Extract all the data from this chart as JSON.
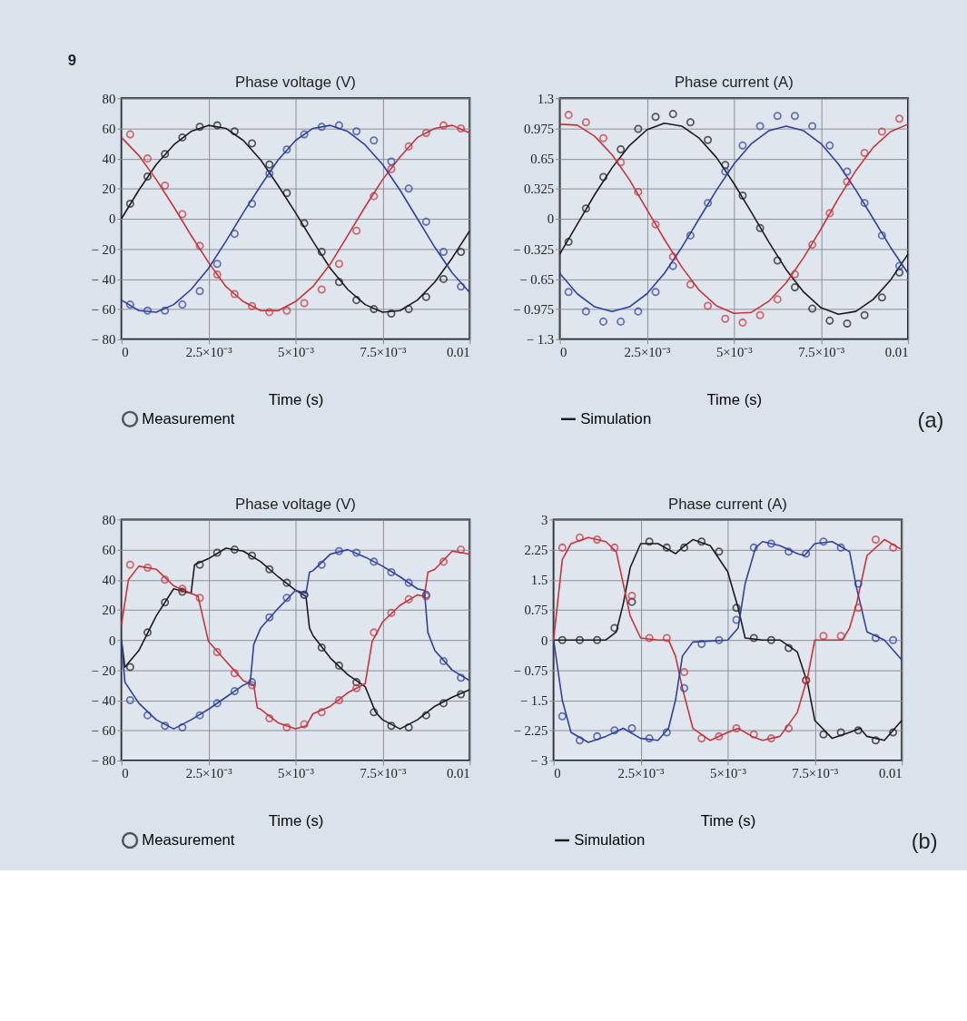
{
  "chart_data": [
    {
      "type": "line",
      "title": "Phase voltage (V)",
      "xlabel": "Time (s)",
      "xlim": [
        0,
        0.01
      ],
      "ylim": [
        -80,
        80
      ],
      "grid": true,
      "legend": "bottom",
      "annotations": [
        "9"
      ],
      "xticks": [
        0,
        {
          "value": 0.0025,
          "label": "2.5×10⁻³"
        },
        {
          "value": 0.005,
          "label": "5×10⁻³"
        },
        {
          "value": 0.0075,
          "label": "7.5×10⁻³"
        },
        0.01
      ],
      "yticks": [
        {
          "value": -80,
          "label": "− 80"
        },
        {
          "value": -60,
          "label": "− 60"
        },
        {
          "value": -40,
          "label": "− 40"
        },
        {
          "value": -20,
          "label": "− 20"
        },
        0,
        20,
        40,
        60,
        80
      ],
      "series": [
        {
          "type": "line",
          "color": "#1a1a1a",
          "x": [
            0,
            0.0005,
            0.001,
            0.0015,
            0.002,
            0.0025,
            0.003,
            0.0035,
            0.004,
            0.0045,
            0.005,
            0.0055,
            0.006,
            0.0065,
            0.007,
            0.0075,
            0.008,
            0.0085,
            0.009,
            0.0095,
            0.01
          ],
          "values": [
            0,
            19,
            36,
            49,
            58,
            62,
            60,
            52,
            39,
            22,
            4,
            -15,
            -33,
            -47,
            -57,
            -62,
            -61,
            -54,
            -42,
            -26,
            -8
          ]
        },
        {
          "type": "line",
          "color": "#c8323a",
          "x": [
            0,
            0.0005,
            0.001,
            0.0015,
            0.002,
            0.0025,
            0.003,
            0.0035,
            0.004,
            0.0045,
            0.005,
            0.0055,
            0.006,
            0.0065,
            0.007,
            0.0075,
            0.008,
            0.0085,
            0.009,
            0.0095,
            0.01
          ],
          "values": [
            54,
            42,
            26,
            8,
            -11,
            -29,
            -45,
            -55,
            -61,
            -61,
            -55,
            -45,
            -30,
            -11,
            8,
            26,
            41,
            54,
            60,
            62,
            57
          ]
        },
        {
          "type": "line",
          "color": "#2f3f9e",
          "x": [
            0,
            0.0005,
            0.001,
            0.0015,
            0.002,
            0.0025,
            0.003,
            0.0035,
            0.004,
            0.0045,
            0.005,
            0.0055,
            0.006,
            0.0065,
            0.007,
            0.0075,
            0.008,
            0.0085,
            0.009,
            0.0095,
            0.01
          ],
          "values": [
            -54,
            -61,
            -62,
            -57,
            -47,
            -33,
            -15,
            4,
            22,
            39,
            52,
            60,
            62,
            58,
            49,
            36,
            19,
            0,
            -19,
            -36,
            -49
          ]
        },
        {
          "type": "scatter",
          "name": "Measurement",
          "color": "#1a1a1a",
          "marker": "circle",
          "x": [
            0.00025,
            0.00075,
            0.00125,
            0.00175,
            0.00225,
            0.00275,
            0.00325,
            0.00375,
            0.00425,
            0.00475,
            0.00525,
            0.00575,
            0.00625,
            0.00675,
            0.00725,
            0.00775,
            0.00825,
            0.00875,
            0.00925,
            0.00975
          ],
          "values": [
            10,
            28,
            43,
            54,
            61,
            62,
            58,
            50,
            36,
            17,
            -3,
            -22,
            -42,
            -54,
            -60,
            -63,
            -60,
            -52,
            -40,
            -22
          ]
        },
        {
          "type": "scatter",
          "color": "#c8323a",
          "marker": "circle",
          "x": [
            0.00025,
            0.00075,
            0.00125,
            0.00175,
            0.00225,
            0.00275,
            0.00325,
            0.00375,
            0.00425,
            0.00475,
            0.00525,
            0.00575,
            0.00625,
            0.00675,
            0.00725,
            0.00775,
            0.00825,
            0.00875,
            0.00925,
            0.00975
          ],
          "values": [
            56,
            40,
            22,
            3,
            -18,
            -37,
            -50,
            -58,
            -62,
            -61,
            -56,
            -47,
            -30,
            -8,
            15,
            33,
            48,
            57,
            62,
            60
          ]
        },
        {
          "type": "scatter",
          "color": "#2f3f9e",
          "marker": "circle",
          "x": [
            0.00025,
            0.00075,
            0.00125,
            0.00175,
            0.00225,
            0.00275,
            0.00325,
            0.00375,
            0.00425,
            0.00475,
            0.00525,
            0.00575,
            0.00625,
            0.00675,
            0.00725,
            0.00775,
            0.00825,
            0.00875,
            0.00925,
            0.00975
          ],
          "values": [
            -57,
            -61,
            -61,
            -57,
            -48,
            -30,
            -10,
            10,
            30,
            46,
            56,
            61,
            62,
            58,
            52,
            38,
            20,
            -2,
            -22,
            -45
          ]
        }
      ]
    },
    {
      "type": "line",
      "title": "Phase current (A)",
      "xlabel": "Time (s)",
      "xlim": [
        0,
        0.01
      ],
      "ylim": [
        -1.3,
        1.3
      ],
      "grid": true,
      "legend": "bottom",
      "annotations": [
        "(a)"
      ],
      "xticks": [
        0,
        {
          "value": 0.0025,
          "label": "2.5×10⁻³"
        },
        {
          "value": 0.005,
          "label": "5×10⁻³"
        },
        {
          "value": 0.0075,
          "label": "7.5×10⁻³"
        },
        0.01
      ],
      "yticks": [
        {
          "value": -1.3,
          "label": "− 1.3"
        },
        {
          "value": -0.975,
          "label": "− 0.975"
        },
        {
          "value": -0.65,
          "label": "− 0.65"
        },
        {
          "value": -0.325,
          "label": "− 0.325"
        },
        0,
        0.325,
        0.65,
        0.975,
        1.3
      ],
      "series": [
        {
          "type": "line",
          "name": "Simulation",
          "color": "#1a1a1a",
          "x": [
            0,
            0.0005,
            0.001,
            0.0015,
            0.002,
            0.0025,
            0.003,
            0.0035,
            0.004,
            0.0045,
            0.005,
            0.0055,
            0.006,
            0.0065,
            0.007,
            0.0075,
            0.008,
            0.0085,
            0.009,
            0.0095,
            0.01
          ],
          "values": [
            -0.38,
            -0.06,
            0.26,
            0.55,
            0.79,
            0.96,
            1.03,
            1.0,
            0.87,
            0.66,
            0.38,
            0.07,
            -0.25,
            -0.55,
            -0.79,
            -0.96,
            -1.03,
            -1.0,
            -0.87,
            -0.66,
            -0.38
          ]
        },
        {
          "type": "line",
          "color": "#c8323a",
          "x": [
            0,
            0.0005,
            0.001,
            0.0015,
            0.002,
            0.0025,
            0.003,
            0.0035,
            0.004,
            0.0045,
            0.005,
            0.0055,
            0.006,
            0.0065,
            0.007,
            0.0075,
            0.008,
            0.0085,
            0.009,
            0.0095,
            0.01
          ],
          "values": [
            1.02,
            1.01,
            0.89,
            0.69,
            0.42,
            0.1,
            -0.22,
            -0.52,
            -0.77,
            -0.94,
            -1.02,
            -1.01,
            -0.89,
            -0.69,
            -0.42,
            -0.11,
            0.22,
            0.52,
            0.77,
            0.94,
            1.02
          ]
        },
        {
          "type": "line",
          "color": "#2f3f9e",
          "x": [
            0,
            0.0005,
            0.001,
            0.0015,
            0.002,
            0.0025,
            0.003,
            0.0035,
            0.004,
            0.0045,
            0.005,
            0.0055,
            0.006,
            0.0065,
            0.007,
            0.0075,
            0.008,
            0.0085,
            0.009,
            0.0095,
            0.01
          ],
          "values": [
            -0.59,
            -0.81,
            -0.95,
            -1.0,
            -0.95,
            -0.81,
            -0.59,
            -0.31,
            0,
            0.31,
            0.59,
            0.81,
            0.95,
            1.0,
            0.95,
            0.81,
            0.59,
            0.31,
            0,
            -0.31,
            -0.59
          ]
        },
        {
          "type": "scatter",
          "color": "#1a1a1a",
          "marker": "circle",
          "x": [
            0.00025,
            0.00075,
            0.00125,
            0.00175,
            0.00225,
            0.00275,
            0.00325,
            0.00375,
            0.00425,
            0.00475,
            0.00525,
            0.00575,
            0.00625,
            0.00675,
            0.00725,
            0.00775,
            0.00825,
            0.00875,
            0.00925,
            0.00975
          ],
          "values": [
            -0.25,
            0.11,
            0.45,
            0.75,
            0.97,
            1.1,
            1.13,
            1.04,
            0.85,
            0.58,
            0.25,
            -0.1,
            -0.45,
            -0.74,
            -0.97,
            -1.1,
            -1.13,
            -1.04,
            -0.85,
            -0.58
          ]
        },
        {
          "type": "scatter",
          "color": "#c8323a",
          "marker": "circle",
          "x": [
            0.00025,
            0.00075,
            0.00125,
            0.00175,
            0.00225,
            0.00275,
            0.00325,
            0.00375,
            0.00425,
            0.00475,
            0.00525,
            0.00575,
            0.00625,
            0.00675,
            0.00725,
            0.00775,
            0.00825,
            0.00875,
            0.00925,
            0.00975
          ],
          "values": [
            1.12,
            1.04,
            0.87,
            0.61,
            0.29,
            -0.06,
            -0.41,
            -0.71,
            -0.94,
            -1.08,
            -1.12,
            -1.04,
            -0.87,
            -0.6,
            -0.28,
            0.06,
            0.4,
            0.71,
            0.94,
            1.08
          ]
        },
        {
          "type": "scatter",
          "color": "#2f3f9e",
          "marker": "circle",
          "x": [
            0.00025,
            0.00075,
            0.00125,
            0.00175,
            0.00225,
            0.00275,
            0.00325,
            0.00375,
            0.00425,
            0.00475,
            0.00525,
            0.00575,
            0.00625,
            0.00675,
            0.00725,
            0.00775,
            0.00825,
            0.00875,
            0.00925,
            0.00975
          ],
          "values": [
            -0.79,
            -1.0,
            -1.11,
            -1.11,
            -1.0,
            -0.79,
            -0.51,
            -0.18,
            0.17,
            0.51,
            0.79,
            1.0,
            1.11,
            1.11,
            1.0,
            0.79,
            0.51,
            0.17,
            -0.18,
            -0.51
          ]
        }
      ]
    },
    {
      "type": "line",
      "title": "Phase voltage (V)",
      "xlabel": "Time (s)",
      "xlim": [
        0,
        0.01
      ],
      "ylim": [
        -80,
        80
      ],
      "grid": true,
      "legend": "bottom",
      "xticks": [
        0,
        {
          "value": 0.0025,
          "label": "2.5×10⁻³"
        },
        {
          "value": 0.005,
          "label": "5×10⁻³"
        },
        {
          "value": 0.0075,
          "label": "7.5×10⁻³"
        },
        0.01
      ],
      "yticks": [
        {
          "value": -80,
          "label": "− 80"
        },
        {
          "value": -60,
          "label": "− 60"
        },
        {
          "value": -40,
          "label": "− 40"
        },
        {
          "value": -20,
          "label": "− 20"
        },
        0,
        20,
        40,
        60,
        80
      ],
      "series": [
        {
          "type": "line",
          "color": "#1a1a1a",
          "x": [
            0,
            0.0001,
            0.0005,
            0.001,
            0.0015,
            0.002,
            0.0021,
            0.0025,
            0.003,
            0.0035,
            0.004,
            0.0045,
            0.005,
            0.0053,
            0.0054,
            0.0055,
            0.006,
            0.0065,
            0.007,
            0.0073,
            0.0075,
            0.008,
            0.0085,
            0.009,
            0.0095,
            0.01
          ],
          "values": [
            0,
            -18,
            -7,
            16,
            34,
            31,
            50,
            54,
            61,
            59,
            52,
            42,
            33,
            29,
            8,
            3,
            -12,
            -23,
            -31,
            -48,
            -53,
            -59,
            -53,
            -44,
            -38,
            -33
          ]
        },
        {
          "type": "line",
          "color": "#c8323a",
          "x": [
            0,
            0.0002,
            0.0005,
            0.001,
            0.0015,
            0.002,
            0.0022,
            0.0025,
            0.003,
            0.0035,
            0.0038,
            0.0039,
            0.004,
            0.0045,
            0.005,
            0.0053,
            0.0055,
            0.006,
            0.0065,
            0.007,
            0.0071,
            0.0072,
            0.0075,
            0.008,
            0.0085,
            0.0087,
            0.0088,
            0.009,
            0.0095,
            0.01
          ],
          "values": [
            10,
            40,
            49,
            47,
            36,
            31,
            29,
            -1,
            -14,
            -27,
            -30,
            -45,
            -46,
            -55,
            -59,
            -57,
            -49,
            -44,
            -35,
            -29,
            -15,
            -1,
            12,
            23,
            30,
            29,
            45,
            47,
            59,
            57
          ]
        },
        {
          "type": "line",
          "color": "#2f3f9e",
          "x": [
            0,
            0.0001,
            0.0005,
            0.001,
            0.0015,
            0.002,
            0.0025,
            0.003,
            0.0035,
            0.0037,
            0.0038,
            0.004,
            0.0045,
            0.005,
            0.0053,
            0.0054,
            0.0055,
            0.006,
            0.0065,
            0.007,
            0.0075,
            0.008,
            0.0085,
            0.0087,
            0.0088,
            0.009,
            0.0095,
            0.01
          ],
          "values": [
            0,
            -28,
            -42,
            -53,
            -59,
            -53,
            -46,
            -38,
            -30,
            -28,
            -3,
            8,
            21,
            33,
            31,
            45,
            46,
            57,
            60,
            55,
            49,
            42,
            34,
            33,
            5,
            -7,
            -20,
            -27
          ]
        },
        {
          "type": "scatter",
          "name": "Measurement",
          "color": "#1a1a1a",
          "marker": "circle",
          "x": [
            0.00025,
            0.00075,
            0.00125,
            0.00175,
            0.00225,
            0.00275,
            0.00325,
            0.00375,
            0.00425,
            0.00475,
            0.00525,
            0.00575,
            0.00625,
            0.00675,
            0.00725,
            0.00775,
            0.00825,
            0.00875,
            0.00925,
            0.00975
          ],
          "values": [
            -18,
            5,
            25,
            32,
            50,
            58,
            60,
            56,
            47,
            38,
            30,
            -5,
            -17,
            -28,
            -48,
            -57,
            -58,
            -50,
            -42,
            -36
          ]
        },
        {
          "type": "scatter",
          "color": "#c8323a",
          "marker": "circle",
          "x": [
            0.00025,
            0.00075,
            0.00125,
            0.00175,
            0.00225,
            0.00275,
            0.00325,
            0.00375,
            0.00425,
            0.00475,
            0.00525,
            0.00575,
            0.00625,
            0.00675,
            0.00725,
            0.00775,
            0.00825,
            0.00875,
            0.00925,
            0.00975
          ],
          "values": [
            50,
            48,
            40,
            34,
            28,
            -8,
            -22,
            -30,
            -52,
            -58,
            -56,
            -48,
            -40,
            -32,
            5,
            18,
            27,
            29,
            52,
            60
          ]
        },
        {
          "type": "scatter",
          "color": "#2f3f9e",
          "marker": "circle",
          "x": [
            0.00025,
            0.00075,
            0.00125,
            0.00175,
            0.00225,
            0.00275,
            0.00325,
            0.00375,
            0.00425,
            0.00475,
            0.00525,
            0.00575,
            0.00625,
            0.00675,
            0.00725,
            0.00775,
            0.00825,
            0.00875,
            0.00925,
            0.00975
          ],
          "values": [
            -40,
            -50,
            -57,
            -58,
            -50,
            -42,
            -34,
            -28,
            15,
            28,
            30,
            50,
            59,
            58,
            52,
            45,
            38,
            30,
            -14,
            -25
          ]
        }
      ]
    },
    {
      "type": "line",
      "title": "Phase current (A)",
      "xlabel": "Time (s)",
      "xlim": [
        0,
        0.01
      ],
      "ylim": [
        -3,
        3
      ],
      "grid": true,
      "legend": "bottom",
      "annotations": [
        "(b)"
      ],
      "xticks": [
        0,
        {
          "value": 0.0025,
          "label": "2.5×10⁻³"
        },
        {
          "value": 0.005,
          "label": "5×10⁻³"
        },
        {
          "value": 0.0075,
          "label": "7.5×10⁻³"
        },
        0.01
      ],
      "yticks": [
        {
          "value": -3,
          "label": "− 3"
        },
        {
          "value": -2.25,
          "label": "− 2.25"
        },
        {
          "value": -1.5,
          "label": "− 1.5"
        },
        {
          "value": -0.75,
          "label": "− 0.75"
        },
        0,
        0.75,
        1.5,
        2.25,
        3
      ],
      "series": [
        {
          "type": "line",
          "name": "Simulation",
          "color": "#1a1a1a",
          "x": [
            0,
            0.0005,
            0.0015,
            0.0018,
            0.002,
            0.0022,
            0.0025,
            0.003,
            0.0035,
            0.0037,
            0.004,
            0.0045,
            0.005,
            0.0053,
            0.0055,
            0.006,
            0.0065,
            0.007,
            0.0073,
            0.0075,
            0.008,
            0.0085,
            0.0088,
            0.009,
            0.0095,
            0.01
          ],
          "values": [
            0,
            0,
            0,
            0.2,
            0.9,
            1.8,
            2.4,
            2.4,
            2.15,
            2.3,
            2.5,
            2.35,
            1.7,
            0.8,
            0.05,
            0,
            0,
            -0.3,
            -1.1,
            -2.0,
            -2.45,
            -2.3,
            -2.2,
            -2.4,
            -2.5,
            -2.0
          ]
        },
        {
          "type": "line",
          "color": "#c8323a",
          "x": [
            0,
            0.00025,
            0.0005,
            0.001,
            0.0015,
            0.0018,
            0.002,
            0.0022,
            0.0025,
            0.003,
            0.0033,
            0.0035,
            0.0037,
            0.004,
            0.0045,
            0.005,
            0.0053,
            0.0057,
            0.006,
            0.0065,
            0.007,
            0.0073,
            0.0075,
            0.008,
            0.0083,
            0.0085,
            0.0087,
            0.009,
            0.0095,
            0.01
          ],
          "values": [
            0,
            2.0,
            2.4,
            2.55,
            2.45,
            2.2,
            1.4,
            0.6,
            0.05,
            0,
            0,
            -0.4,
            -1.2,
            -2.2,
            -2.5,
            -2.3,
            -2.2,
            -2.4,
            -2.5,
            -2.4,
            -1.8,
            -0.9,
            0,
            0,
            0,
            0.3,
            0.9,
            2.1,
            2.5,
            2.25
          ]
        },
        {
          "type": "line",
          "color": "#2f3f9e",
          "x": [
            0,
            0.00025,
            0.0005,
            0.001,
            0.0015,
            0.002,
            0.0025,
            0.003,
            0.0033,
            0.0035,
            0.0037,
            0.004,
            0.005,
            0.0053,
            0.0055,
            0.0058,
            0.006,
            0.0065,
            0.007,
            0.0072,
            0.0075,
            0.008,
            0.0085,
            0.0087,
            0.009,
            0.0095,
            0.01
          ],
          "values": [
            0,
            -1.5,
            -2.3,
            -2.55,
            -2.4,
            -2.2,
            -2.45,
            -2.5,
            -2.2,
            -1.5,
            -0.4,
            -0.05,
            0,
            0.3,
            1.4,
            2.3,
            2.45,
            2.35,
            2.15,
            2.1,
            2.4,
            2.45,
            2.2,
            1.3,
            0.2,
            0,
            -0.5
          ]
        },
        {
          "type": "scatter",
          "color": "#1a1a1a",
          "marker": "circle",
          "x": [
            0.00025,
            0.00075,
            0.00125,
            0.00175,
            0.00225,
            0.00275,
            0.00325,
            0.00375,
            0.00425,
            0.00475,
            0.00525,
            0.00575,
            0.00625,
            0.00675,
            0.00725,
            0.00775,
            0.00825,
            0.00875,
            0.00925,
            0.00975
          ],
          "values": [
            0,
            0,
            0,
            0.3,
            0.95,
            2.45,
            2.3,
            2.3,
            2.45,
            2.2,
            0.8,
            0.05,
            0,
            -0.2,
            -1.0,
            -2.35,
            -2.3,
            -2.25,
            -2.5,
            -2.3
          ]
        },
        {
          "type": "scatter",
          "color": "#c8323a",
          "marker": "circle",
          "x": [
            0.00025,
            0.00075,
            0.00125,
            0.00175,
            0.00225,
            0.00275,
            0.00325,
            0.00375,
            0.00425,
            0.00475,
            0.00525,
            0.00575,
            0.00625,
            0.00675,
            0.00725,
            0.00775,
            0.00825,
            0.00875,
            0.00925,
            0.00975
          ],
          "values": [
            2.3,
            2.55,
            2.5,
            2.3,
            1.1,
            0.05,
            0.05,
            -0.8,
            -2.45,
            -2.4,
            -2.2,
            -2.35,
            -2.45,
            -2.2,
            -1.0,
            0.1,
            0.1,
            0.8,
            2.5,
            2.3
          ]
        },
        {
          "type": "scatter",
          "color": "#2f3f9e",
          "marker": "circle",
          "x": [
            0.00025,
            0.00075,
            0.00125,
            0.00175,
            0.00225,
            0.00275,
            0.00325,
            0.00375,
            0.00425,
            0.00475,
            0.00525,
            0.00575,
            0.00625,
            0.00675,
            0.00725,
            0.00775,
            0.00825,
            0.00875,
            0.00925,
            0.00975
          ],
          "values": [
            -1.9,
            -2.5,
            -2.4,
            -2.25,
            -2.2,
            -2.45,
            -2.3,
            -1.2,
            -0.1,
            0,
            0.5,
            2.3,
            2.4,
            2.2,
            2.15,
            2.45,
            2.3,
            1.4,
            0.05,
            0
          ]
        }
      ]
    }
  ]
}
